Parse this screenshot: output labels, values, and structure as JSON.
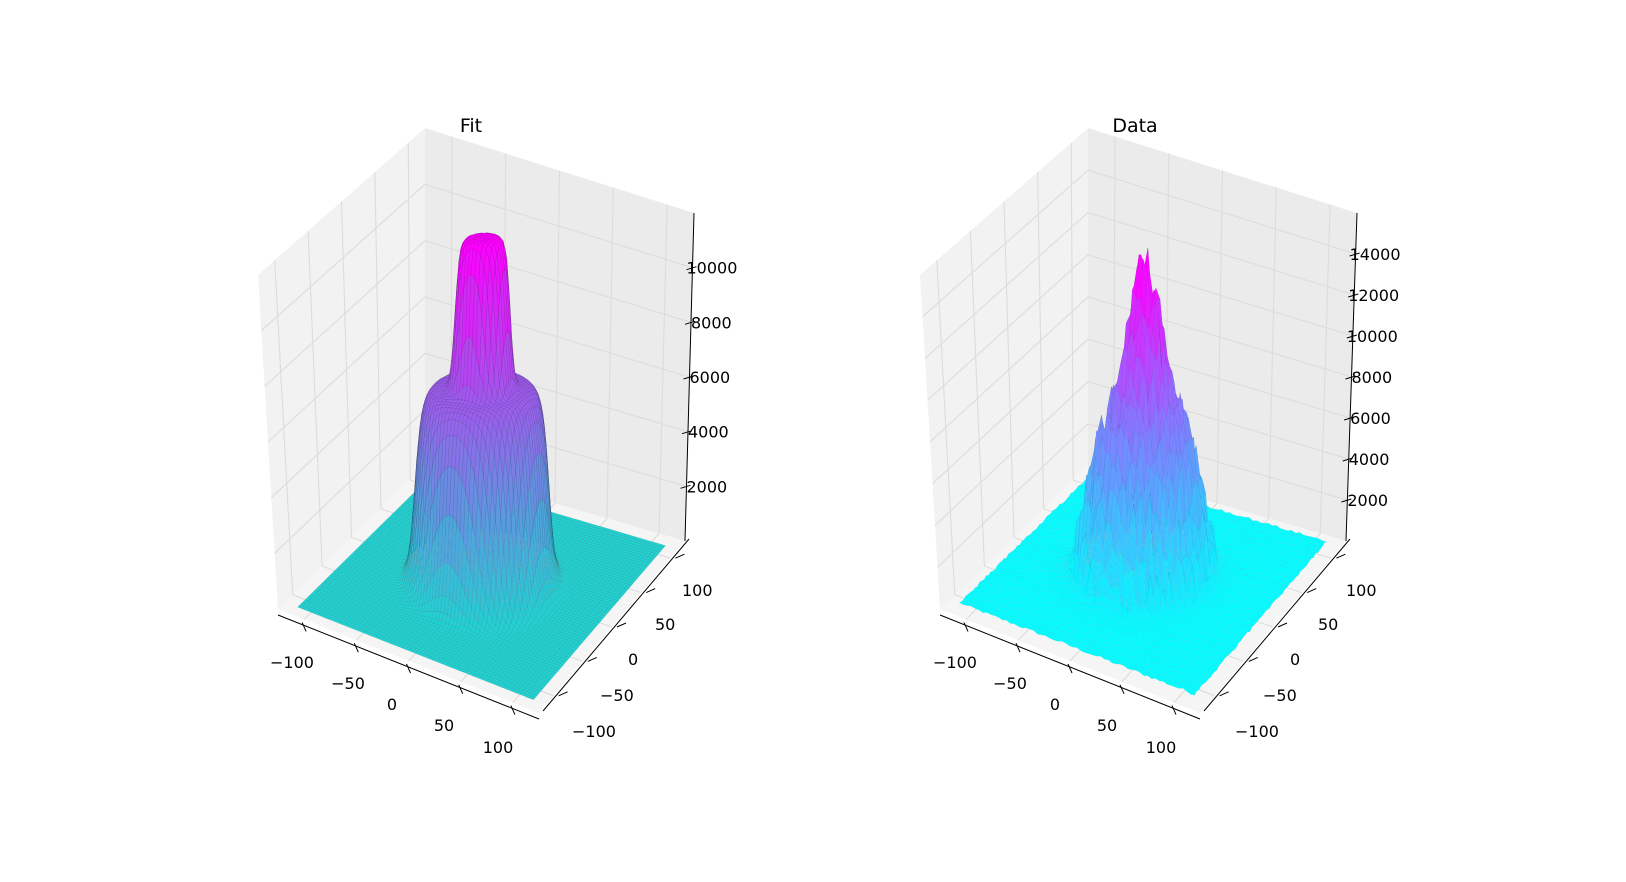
{
  "chart_data": [
    {
      "type": "surface3d",
      "title": "Fit",
      "x_ticks": [
        -100,
        -50,
        0,
        50,
        100
      ],
      "y_ticks": [
        -100,
        -50,
        0,
        50,
        100
      ],
      "z_ticks": [
        2000,
        4000,
        6000,
        8000,
        10000
      ],
      "xlim": [
        -125,
        125
      ],
      "ylim": [
        -125,
        125
      ],
      "zlim": [
        0,
        12000
      ],
      "surface": {
        "shape": "central column plus surrounding ring",
        "base_level": 0,
        "ring_peak_z": 6400,
        "ring_radius": 55,
        "column_peak_z": 11400,
        "column_radius": 22
      },
      "colormap": {
        "low": "#1fd3d3",
        "high": "#ff00ff"
      },
      "grid": true
    },
    {
      "type": "surface3d",
      "title": "Data",
      "x_ticks": [
        -100,
        -50,
        0,
        50,
        100
      ],
      "y_ticks": [
        -100,
        -50,
        0,
        50,
        100
      ],
      "z_ticks": [
        2000,
        4000,
        6000,
        8000,
        10000,
        12000,
        14000
      ],
      "xlim": [
        -125,
        125
      ],
      "ylim": [
        -125,
        125
      ],
      "zlim": [
        0,
        16000
      ],
      "surface": {
        "shape": "noisy central peak plus noisy ring",
        "base_level": 200,
        "ring_peak_z": 7000,
        "peak_z": 14000
      },
      "colormap": {
        "low": "#00ffff",
        "high": "#ff00ff"
      },
      "grid": true
    }
  ]
}
